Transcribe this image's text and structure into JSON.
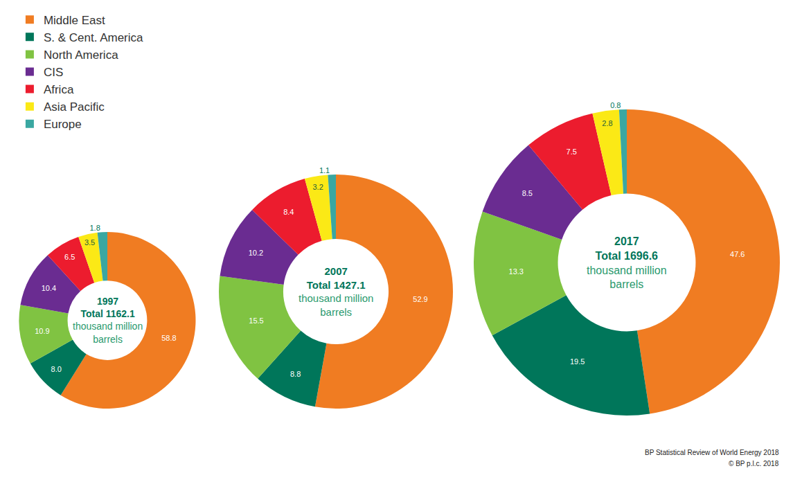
{
  "chart_data": [
    {
      "type": "pie",
      "title": "1997",
      "annotations": [
        "Total 1162.1",
        "thousand million barrels"
      ],
      "categories": [
        "Middle East",
        "S. & Cent. America",
        "North America",
        "CIS",
        "Africa",
        "Asia Pacific",
        "Europe"
      ],
      "values": [
        58.8,
        8.0,
        10.9,
        10.4,
        6.5,
        3.5,
        1.8
      ],
      "value_labels": [
        "58.8",
        "8.0",
        "10.9",
        "10.4",
        "6.5",
        "3.5",
        "1.8"
      ],
      "colors": [
        "#f07c22",
        "#00765a",
        "#80c342",
        "#6a2c91",
        "#ec1c2e",
        "#fbe916",
        "#3aa7a1"
      ],
      "data_labels": true,
      "legend": "top-left"
    },
    {
      "type": "pie",
      "title": "2007",
      "annotations": [
        "Total 1427.1",
        "thousand million barrels"
      ],
      "categories": [
        "Middle East",
        "S. & Cent. America",
        "North America",
        "CIS",
        "Africa",
        "Asia Pacific",
        "Europe"
      ],
      "values": [
        52.9,
        8.8,
        15.5,
        10.2,
        8.4,
        3.2,
        1.1
      ],
      "value_labels": [
        "52.9",
        "8.8",
        "15.5",
        "10.2",
        "8.4",
        "3.2",
        "1.1"
      ],
      "colors": [
        "#f07c22",
        "#00765a",
        "#80c342",
        "#6a2c91",
        "#ec1c2e",
        "#fbe916",
        "#3aa7a1"
      ],
      "data_labels": true
    },
    {
      "type": "pie",
      "title": "2017",
      "annotations": [
        "Total 1696.6",
        "thousand million barrels"
      ],
      "categories": [
        "Middle East",
        "S. & Cent. America",
        "North America",
        "CIS",
        "Africa",
        "Asia Pacific",
        "Europe"
      ],
      "values": [
        47.6,
        19.5,
        13.3,
        8.5,
        7.5,
        2.8,
        0.8
      ],
      "value_labels": [
        "47.6",
        "19.5",
        "13.3",
        "8.5",
        "7.5",
        "2.8",
        "0.8"
      ],
      "colors": [
        "#f07c22",
        "#00765a",
        "#80c342",
        "#6a2c91",
        "#ec1c2e",
        "#fbe916",
        "#3aa7a1"
      ],
      "data_labels": true
    }
  ],
  "source": [
    "BP Statistical Review of World Energy 2018",
    "© BP p.l.c. 2018"
  ]
}
